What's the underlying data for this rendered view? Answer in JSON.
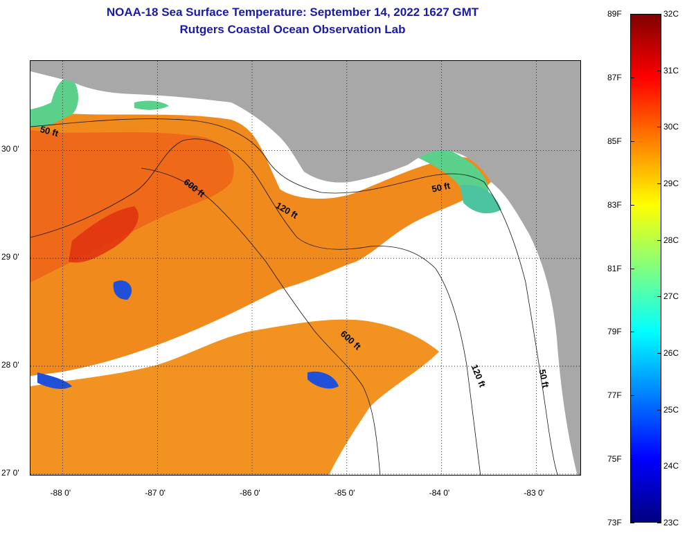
{
  "title_line1": "NOAA-18 Sea Surface Temperature:  September 14, 2022 1627 GMT",
  "title_line2": "Rutgers Coastal Ocean Observation Lab",
  "map": {
    "lon_range": [
      -88.34,
      -82.52
    ],
    "lat_range": [
      26.98,
      30.83
    ],
    "lon_ticks": [
      {
        "value": -88,
        "label": "-88 0'"
      },
      {
        "value": -87,
        "label": "-87 0'"
      },
      {
        "value": -86,
        "label": "-86 0'"
      },
      {
        "value": -85,
        "label": "-85 0'"
      },
      {
        "value": -84,
        "label": "-84 0'"
      },
      {
        "value": -83,
        "label": "-83 0'"
      }
    ],
    "lat_ticks": [
      {
        "value": 30,
        "label": "30 0'"
      },
      {
        "value": 29,
        "label": "29 0'"
      },
      {
        "value": 28,
        "label": "28 0'"
      },
      {
        "value": 27,
        "label": "27 0'"
      }
    ],
    "grid": "dotted",
    "isobath_labels": [
      {
        "text": "50 ft",
        "lon": -88.15,
        "lat": 30.15,
        "angle": 15
      },
      {
        "text": "600 ft",
        "lon": -86.63,
        "lat": 29.63,
        "angle": 38
      },
      {
        "text": "120 ft",
        "lon": -85.65,
        "lat": 29.42,
        "angle": 30
      },
      {
        "text": "50 ft",
        "lon": -84.0,
        "lat": 29.63,
        "angle": -12
      },
      {
        "text": "600 ft",
        "lon": -84.98,
        "lat": 28.22,
        "angle": 42
      },
      {
        "text": "120 ft",
        "lon": -83.64,
        "lat": 27.9,
        "angle": 68
      },
      {
        "text": "50 ft",
        "lon": -82.95,
        "lat": 27.88,
        "angle": 78
      }
    ],
    "colors": {
      "land": "#a8a8a8",
      "cloud": "#ffffff",
      "warm": "#f08a1c",
      "warmer": "#ee6a18",
      "hot": "#e03010",
      "cool": "#5ad08a",
      "cold": "#2050d8"
    }
  },
  "colorbar": {
    "fahrenheit_labels": [
      "89F",
      "87F",
      "85F",
      "83F",
      "81F",
      "79F",
      "77F",
      "75F",
      "73F"
    ],
    "celsius_labels": [
      "32C",
      "31C",
      "30C",
      "29C",
      "28C",
      "27C",
      "26C",
      "25C",
      "24C",
      "23C"
    ],
    "stops": [
      "#800000",
      "#ff0000",
      "#ff8000",
      "#ffff00",
      "#80ff80",
      "#00ffff",
      "#0080ff",
      "#0000ff",
      "#000080"
    ]
  }
}
